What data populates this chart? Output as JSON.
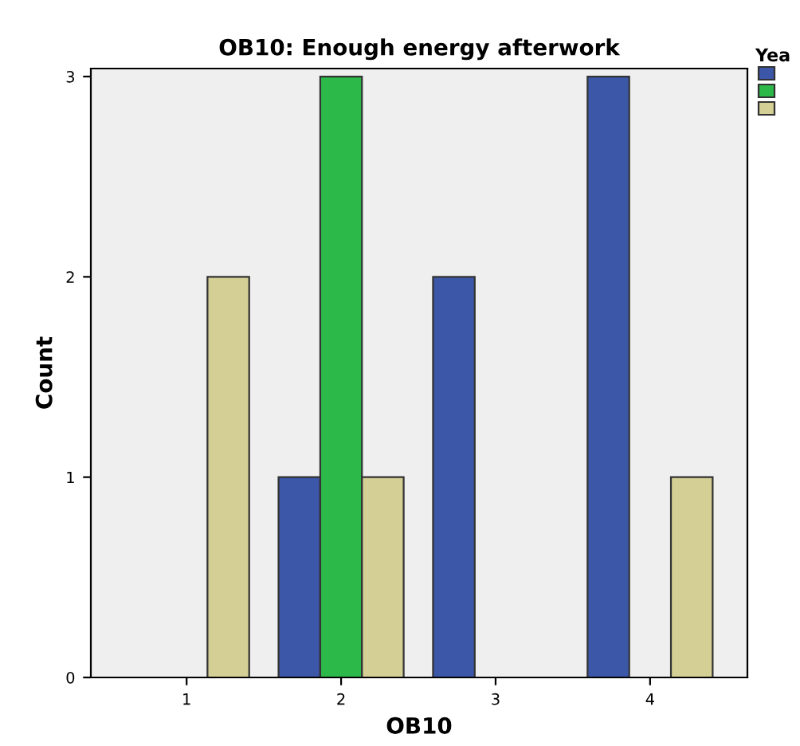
{
  "chart_data": {
    "type": "bar",
    "title": "OB10: Enough energy afterwork",
    "xlabel": "OB10",
    "ylabel": "Count",
    "legend_title": "Yea",
    "categories": [
      "1",
      "2",
      "3",
      "4"
    ],
    "series": [
      {
        "color": "#3c56a8",
        "values": [
          null,
          1,
          2,
          3
        ]
      },
      {
        "color": "#2db84a",
        "values": [
          null,
          3,
          null,
          null
        ]
      },
      {
        "color": "#d4cf94",
        "values": [
          2,
          1,
          null,
          1
        ]
      }
    ],
    "ylim": [
      0,
      3.04
    ],
    "yticks": [
      0,
      1,
      2,
      3
    ],
    "grid": false
  }
}
